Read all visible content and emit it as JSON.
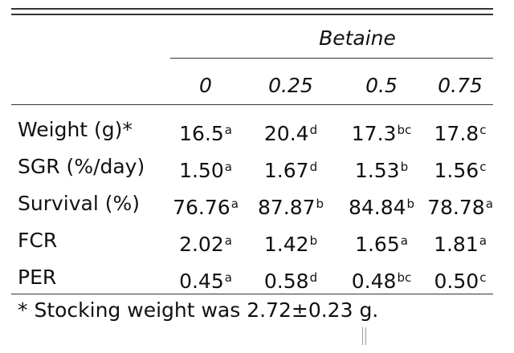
{
  "table": {
    "group_header": "Betaine",
    "columns": [
      "0",
      "0.25",
      "0.5",
      "0.75"
    ],
    "rows": [
      {
        "label": "Weight (g)*",
        "values": [
          {
            "v": "16.5",
            "s": "a"
          },
          {
            "v": "20.4",
            "s": "d"
          },
          {
            "v": "17.3",
            "s": "bc"
          },
          {
            "v": "17.8",
            "s": "c"
          }
        ]
      },
      {
        "label": "SGR (%/day)",
        "values": [
          {
            "v": "1.50",
            "s": "a"
          },
          {
            "v": "1.67",
            "s": "d"
          },
          {
            "v": "1.53",
            "s": "b"
          },
          {
            "v": "1.56",
            "s": "c"
          }
        ]
      },
      {
        "label": "Survival (%)",
        "values": [
          {
            "v": "76.76",
            "s": "a"
          },
          {
            "v": "87.87",
            "s": "b"
          },
          {
            "v": "84.84",
            "s": "b"
          },
          {
            "v": "78.78",
            "s": "a"
          }
        ]
      },
      {
        "label": "FCR",
        "values": [
          {
            "v": "2.02",
            "s": "a"
          },
          {
            "v": "1.42",
            "s": "b"
          },
          {
            "v": "1.65",
            "s": "a"
          },
          {
            "v": "1.81",
            "s": "a"
          }
        ]
      },
      {
        "label": "PER",
        "values": [
          {
            "v": "0.45",
            "s": "a"
          },
          {
            "v": "0.58",
            "s": "d"
          },
          {
            "v": "0.48",
            "s": "bc"
          },
          {
            "v": "0.50",
            "s": "c"
          }
        ]
      }
    ],
    "footnote": "* Stocking weight was 2.72±0.23 g."
  }
}
